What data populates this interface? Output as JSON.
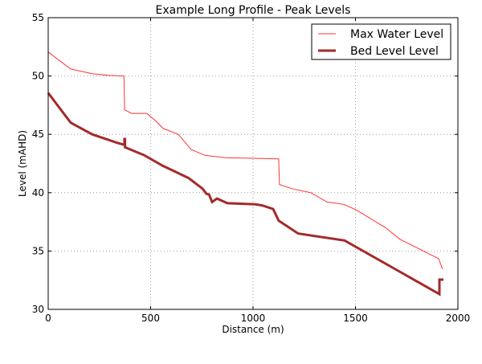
{
  "chart_data": {
    "type": "line",
    "title": "Example Long Profile - Peak Levels",
    "xlabel": "Distance (m)",
    "ylabel": "Level (mAHD)",
    "xlim": [
      0,
      2000
    ],
    "ylim": [
      30,
      55
    ],
    "xticks": [
      0,
      500,
      1000,
      1500,
      2000
    ],
    "yticks": [
      30,
      35,
      40,
      45,
      50,
      55
    ],
    "xtick_labels": [
      "0",
      "500",
      "1000",
      "1500",
      "2000"
    ],
    "ytick_labels": [
      "30",
      "35",
      "40",
      "45",
      "50",
      "55"
    ],
    "grid": true,
    "legend_position": "top-right",
    "series": [
      {
        "name": "Max Water Level",
        "color": "#ff3333",
        "x": [
          0,
          110,
          215,
          300,
          370,
          373,
          408,
          482,
          522,
          561,
          635,
          698,
          765,
          863,
          1000,
          1125,
          1129,
          1188,
          1282,
          1361,
          1443,
          1502,
          1647,
          1718,
          1906,
          1925
        ],
        "y": [
          52.05,
          50.6,
          50.2,
          50.05,
          50.0,
          47.1,
          46.8,
          46.8,
          46.2,
          45.5,
          45.0,
          43.7,
          43.2,
          43.0,
          42.95,
          42.9,
          40.7,
          40.35,
          40.0,
          39.2,
          39.0,
          38.55,
          37.0,
          36.0,
          34.35,
          33.45
        ]
      },
      {
        "name": "Bed Level Level",
        "color": "#a52a2a",
        "x": [
          0,
          110,
          215,
          333,
          372,
          372,
          375,
          375,
          470,
          560,
          686,
          753,
          773,
          785,
          800,
          824,
          875,
          1012,
          1047,
          1098,
          1125,
          1220,
          1447,
          1910,
          1910,
          1930
        ],
        "y": [
          48.55,
          46.0,
          45.0,
          44.3,
          44.1,
          44.6,
          44.6,
          43.9,
          43.2,
          42.3,
          41.25,
          40.35,
          39.9,
          39.85,
          39.2,
          39.5,
          39.1,
          39.0,
          38.9,
          38.6,
          37.6,
          36.5,
          35.9,
          31.3,
          32.55,
          32.55
        ]
      }
    ]
  }
}
